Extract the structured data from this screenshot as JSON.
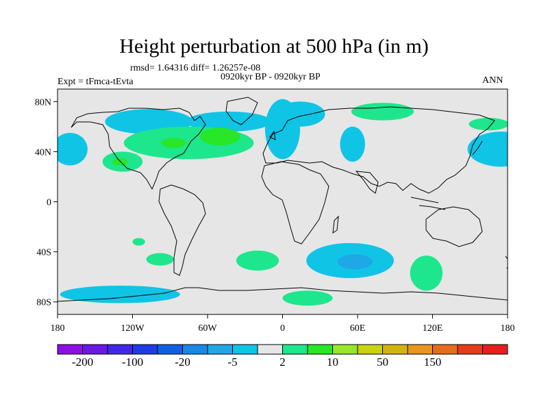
{
  "title": "Height perturbation at 500 hPa (in m)",
  "stats": "rmsd= 1.64316 diff= 1.26257e-08",
  "period": "0920kyr BP - 0920kyr BP",
  "experiment": "Expt = tFmca-tEvta",
  "season": "ANN",
  "map": {
    "lat_ticks": [
      {
        "label": "80N",
        "value": 80
      },
      {
        "label": "40N",
        "value": 40
      },
      {
        "label": "0",
        "value": 0
      },
      {
        "label": "40S",
        "value": -40
      },
      {
        "label": "80S",
        "value": -80
      }
    ],
    "lon_ticks": [
      {
        "label": "180",
        "value": -180
      },
      {
        "label": "120W",
        "value": -120
      },
      {
        "label": "60W",
        "value": -60
      },
      {
        "label": "0",
        "value": 0
      },
      {
        "label": "60E",
        "value": 60
      },
      {
        "label": "120E",
        "value": 120
      },
      {
        "label": "180",
        "value": 180
      }
    ],
    "lat_range": [
      -90,
      90
    ],
    "lon_range": [
      -180,
      180
    ]
  },
  "colorbar": {
    "colors": [
      "#8c10e6",
      "#6a18e6",
      "#4228e6",
      "#1e3ce6",
      "#1060e6",
      "#1a88e6",
      "#1ea8e6",
      "#10c4e6",
      "#e6e6e6",
      "#1ee68c",
      "#28e628",
      "#98e628",
      "#c8d210",
      "#d2b410",
      "#e6961e",
      "#e66c1e",
      "#e63c1e",
      "#e61e1e"
    ],
    "labels": [
      {
        "text": "-200",
        "boundary": 1
      },
      {
        "text": "-100",
        "boundary": 3
      },
      {
        "text": "-20",
        "boundary": 5
      },
      {
        "text": "-5",
        "boundary": 7
      },
      {
        "text": "2",
        "boundary": 9
      },
      {
        "text": "10",
        "boundary": 11
      },
      {
        "text": "50",
        "boundary": 13
      },
      {
        "text": "150",
        "boundary": 15
      }
    ]
  },
  "contours": {
    "neutral_color": "#e6e6e6",
    "regions": [
      {
        "level": "-5 to -2",
        "color": "#10c4e6",
        "lon": -43,
        "lat": 64,
        "rlon": 34,
        "rlat": 8
      },
      {
        "level": "-5 to -2",
        "color": "#10c4e6",
        "lon": -107,
        "lat": 64,
        "rlon": 35,
        "rlat": 10
      },
      {
        "level": "-5 to -2",
        "color": "#10c4e6",
        "lon": 0,
        "lat": 58,
        "rlon": 14,
        "rlat": 24
      },
      {
        "level": "-5 to -2",
        "color": "#10c4e6",
        "lon": 14,
        "lat": 70,
        "rlon": 20,
        "rlat": 10
      },
      {
        "level": "-5 to -2",
        "color": "#10c4e6",
        "lon": 56,
        "lat": 46,
        "rlon": 10,
        "rlat": 14
      },
      {
        "level": "-5 to -2",
        "color": "#10c4e6",
        "lon": -170,
        "lat": 42,
        "rlon": 14,
        "rlat": 13
      },
      {
        "level": "-5 to -2",
        "color": "#10c4e6",
        "lon": 175,
        "lat": 42,
        "rlon": 27,
        "rlat": 14
      },
      {
        "level": "-5 to -2",
        "color": "#10c4e6",
        "lon": 54,
        "lat": -47,
        "rlon": 35,
        "rlat": 14
      },
      {
        "level": "-5 to -2",
        "color": "#10c4e6",
        "lon": -130,
        "lat": -74,
        "rlon": 48,
        "rlat": 7
      },
      {
        "level": "-20 to -5",
        "color": "#1ea8e6",
        "lon": 58,
        "lat": -48,
        "rlon": 14,
        "rlat": 6
      },
      {
        "level": "2 to 5",
        "color": "#1ee68c",
        "lon": -75,
        "lat": 47,
        "rlon": 52,
        "rlat": 13
      },
      {
        "level": "2 to 5",
        "color": "#1ee68c",
        "lon": -128,
        "lat": 32,
        "rlon": 16,
        "rlat": 8
      },
      {
        "level": "2 to 5",
        "color": "#1ee68c",
        "lon": 80,
        "lat": 72,
        "rlon": 25,
        "rlat": 7
      },
      {
        "level": "2 to 5",
        "color": "#1ee68c",
        "lon": 165,
        "lat": 62,
        "rlon": 16,
        "rlat": 5
      },
      {
        "level": "2 to 5",
        "color": "#1ee68c",
        "lon": -20,
        "lat": -47,
        "rlon": 17,
        "rlat": 8
      },
      {
        "level": "2 to 5",
        "color": "#1ee68c",
        "lon": -98,
        "lat": -46,
        "rlon": 11,
        "rlat": 5
      },
      {
        "level": "2 to 5",
        "color": "#1ee68c",
        "lon": -115,
        "lat": -32,
        "rlon": 5,
        "rlat": 3
      },
      {
        "level": "2 to 5",
        "color": "#1ee68c",
        "lon": 115,
        "lat": -57,
        "rlon": 13,
        "rlat": 14
      },
      {
        "level": "2 to 5",
        "color": "#1ee68c",
        "lon": 20,
        "lat": -77,
        "rlon": 20,
        "rlat": 6
      },
      {
        "level": "5 to 10",
        "color": "#28e628",
        "lon": -50,
        "lat": 52,
        "rlon": 16,
        "rlat": 7
      },
      {
        "level": "5 to 10",
        "color": "#28e628",
        "lon": -87,
        "lat": 47,
        "rlon": 10,
        "rlat": 4
      },
      {
        "level": "5 to 10",
        "color": "#28e628",
        "lon": -130,
        "lat": 32,
        "rlon": 6,
        "rlat": 3
      }
    ]
  }
}
